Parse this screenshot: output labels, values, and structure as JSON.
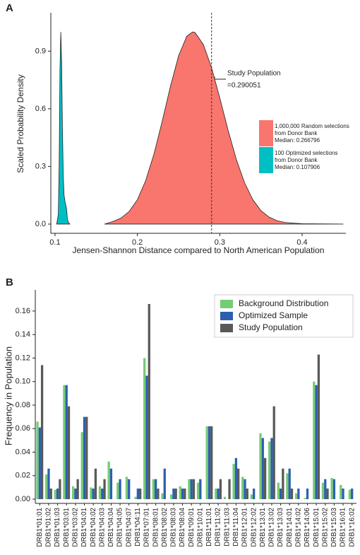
{
  "chart_data": [
    {
      "type": "area",
      "panel": "A",
      "y_label": "Scaled Probability Density",
      "x_label": "Jensen-Shannon Distance compared to North American Population",
      "xlim": [
        0.0949,
        0.4531
      ],
      "xticks": [
        0.1,
        0.2,
        0.3,
        0.4
      ],
      "ylim": [
        -0.048,
        1.1
      ],
      "yticks": [
        {
          "value": 0,
          "label": "0.0"
        },
        0.3,
        0.6,
        0.9
      ],
      "reference_line": {
        "value": 0.290051,
        "label": "Study Population",
        "value_label": "=0.290051"
      },
      "series": [
        {
          "name": [
            "1,000,000 Random selections",
            "from Donor Bank",
            "Median: 0.266796"
          ],
          "color": "#f8766d",
          "x": [
            0.16,
            0.17,
            0.18,
            0.19,
            0.2,
            0.21,
            0.22,
            0.23,
            0.24,
            0.25,
            0.26,
            0.267,
            0.27,
            0.28,
            0.29,
            0.3,
            0.31,
            0.32,
            0.33,
            0.34,
            0.35,
            0.36,
            0.37,
            0.38,
            0.4,
            0.45
          ],
          "values": [
            0,
            0.013,
            0.031,
            0.066,
            0.127,
            0.226,
            0.363,
            0.533,
            0.715,
            0.876,
            0.978,
            1.0,
            0.997,
            0.935,
            0.815,
            0.657,
            0.49,
            0.338,
            0.216,
            0.128,
            0.07,
            0.036,
            0.017,
            0.008,
            0.002,
            0
          ]
        },
        {
          "name": [
            "100 Optimized selections",
            "from Donor Bank",
            "Median: 0.107906"
          ],
          "color": "#00bfc4",
          "x": [
            0.102,
            0.104,
            0.105,
            0.106,
            0.107,
            0.108,
            0.109,
            0.11,
            0.111,
            0.112,
            0.113,
            0.114,
            0.115,
            0.116,
            0.118
          ],
          "values": [
            0,
            0.05,
            0.3,
            0.8,
            1.0,
            0.85,
            0.5,
            0.25,
            0.15,
            0.12,
            0.1,
            0.08,
            0.03,
            0.01,
            0
          ]
        }
      ]
    },
    {
      "type": "bar",
      "panel": "B",
      "y_label": "Frequency in Population",
      "ylim": [
        -0.0036,
        0.178
      ],
      "yticks": [
        {
          "value": 0,
          "label": "0.00"
        },
        0.02,
        0.04,
        0.06,
        0.08,
        {
          "value": 0.1,
          "label": "0.10"
        },
        0.12,
        0.14,
        0.16
      ],
      "categories": [
        "DRB1*01:01",
        "DRB1*01:02",
        "DRB1*01:03",
        "DRB1*03:01",
        "DRB1*03:02",
        "DRB1*04:01",
        "DRB1*04:02",
        "DRB1*04:03",
        "DRB1*04:04",
        "DRB1*04:05",
        "DRB1*04:07",
        "DRB1*04:11",
        "DRB1*07:01",
        "DRB1*08:01",
        "DRB1*08:02",
        "DRB1*08:03",
        "DRB1*08:04",
        "DRB1*09:01",
        "DRB1*10:01",
        "DRB1*11:01",
        "DRB1*11:02",
        "DRB1*11:03",
        "DRB1*11:04",
        "DRB1*12:01",
        "DRB1*12:02",
        "DRB1*13:01",
        "DRB1*13:02",
        "DRB1*13:03",
        "DRB1*14:01",
        "DRB1*14:02",
        "DRB1*14:06",
        "DRB1*15:01",
        "DRB1*15:02",
        "DRB1*15:03",
        "DRB1*16:01",
        "DRB1*16:02"
      ],
      "series": [
        {
          "name": "Background Distribution",
          "color": "#74cc74",
          "values": [
            0.066,
            0.021,
            0.008,
            0.097,
            0.011,
            0.057,
            0.01,
            0.011,
            0.032,
            0.014,
            0.019,
            0.002,
            0.12,
            0.017,
            0.005,
            0.004,
            0.011,
            0.017,
            0.014,
            0.062,
            0.009,
            0.002,
            0.03,
            0.019,
            0.004,
            0.056,
            0.049,
            0.014,
            0.022,
            0.005,
            0.001,
            0.1,
            0.014,
            0.018,
            0.012,
            0.008
          ]
        },
        {
          "name": "Optimized Sample",
          "color": "#2d5fae",
          "values": [
            0.061,
            0.026,
            0.009,
            0.097,
            0.009,
            0.07,
            0.009,
            0.009,
            0.026,
            0.017,
            0.017,
            0.009,
            0.105,
            0.017,
            0.026,
            0.009,
            0.009,
            0.017,
            0.017,
            0.062,
            0.009,
            0,
            0.035,
            0.017,
            0.009,
            0.052,
            0.052,
            0.009,
            0.026,
            0.009,
            0.009,
            0.097,
            0.017,
            0.017,
            0.009,
            0.009
          ]
        },
        {
          "name": "Study Population",
          "color": "#595959",
          "values": [
            0.114,
            0.009,
            0.017,
            0.079,
            0.017,
            0.07,
            0.026,
            0.017,
            0,
            0,
            0,
            0.009,
            0.166,
            0.009,
            0,
            0.009,
            0.009,
            0.017,
            0,
            0.062,
            0.017,
            0.017,
            0.026,
            0.009,
            0,
            0.035,
            0.079,
            0.026,
            0.009,
            0,
            0,
            0.123,
            0.009,
            0,
            0,
            0
          ]
        }
      ]
    }
  ]
}
